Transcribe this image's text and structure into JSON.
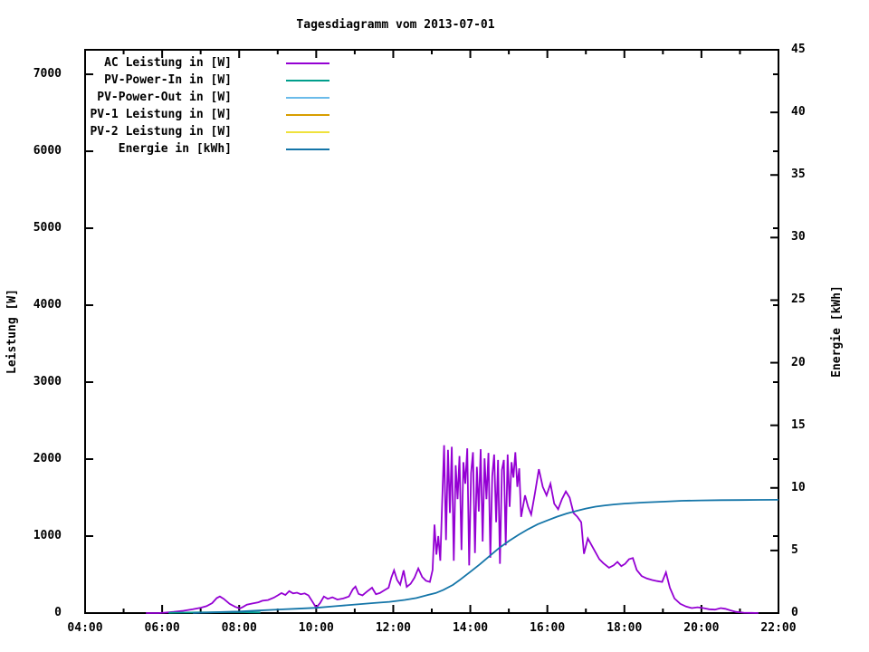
{
  "chart_data": {
    "type": "line",
    "title": "Tagesdiagramm vom 2013-07-01",
    "grid": false,
    "legend_position": "top-left-inside",
    "x_axis": {
      "range_hours": [
        4,
        22
      ],
      "major_tick_hours": 2,
      "minor_tick_hours": 1,
      "tick_labels": [
        {
          "h": 4,
          "label": "04:00"
        },
        {
          "h": 6,
          "label": "06:00"
        },
        {
          "h": 8,
          "label": "08:00"
        },
        {
          "h": 10,
          "label": "10:00"
        },
        {
          "h": 12,
          "label": "12:00"
        },
        {
          "h": 14,
          "label": "14:00"
        },
        {
          "h": 16,
          "label": "16:00"
        },
        {
          "h": 18,
          "label": "18:00"
        },
        {
          "h": 20,
          "label": "20:00"
        },
        {
          "h": 22,
          "label": "22:00"
        }
      ]
    },
    "y_left": {
      "label": "Leistung [W]",
      "range": [
        0,
        7318
      ],
      "ticks": [
        0,
        1000,
        2000,
        3000,
        4000,
        5000,
        6000,
        7000
      ]
    },
    "y_right": {
      "label": "Energie [kWh]",
      "range": [
        0,
        45
      ],
      "ticks": [
        0,
        5,
        10,
        15,
        20,
        25,
        30,
        35,
        40,
        45
      ]
    },
    "series": [
      {
        "name": "AC Leistung in [W]",
        "color": "#9400D3",
        "axis": "left",
        "points": [
          [
            5.58,
            0
          ],
          [
            5.9,
            0
          ],
          [
            6.05,
            5
          ],
          [
            6.3,
            15
          ],
          [
            6.55,
            30
          ],
          [
            6.8,
            50
          ],
          [
            7.0,
            70
          ],
          [
            7.15,
            90
          ],
          [
            7.3,
            130
          ],
          [
            7.42,
            195
          ],
          [
            7.5,
            215
          ],
          [
            7.6,
            185
          ],
          [
            7.75,
            120
          ],
          [
            7.9,
            80
          ],
          [
            8.02,
            60
          ],
          [
            8.1,
            80
          ],
          [
            8.2,
            110
          ],
          [
            8.35,
            125
          ],
          [
            8.5,
            140
          ],
          [
            8.6,
            160
          ],
          [
            8.75,
            170
          ],
          [
            8.9,
            200
          ],
          [
            9.0,
            230
          ],
          [
            9.1,
            260
          ],
          [
            9.2,
            235
          ],
          [
            9.3,
            285
          ],
          [
            9.4,
            255
          ],
          [
            9.5,
            265
          ],
          [
            9.6,
            245
          ],
          [
            9.7,
            255
          ],
          [
            9.8,
            230
          ],
          [
            9.9,
            150
          ],
          [
            10.0,
            70
          ],
          [
            10.1,
            130
          ],
          [
            10.2,
            215
          ],
          [
            10.3,
            185
          ],
          [
            10.42,
            205
          ],
          [
            10.55,
            175
          ],
          [
            10.7,
            190
          ],
          [
            10.85,
            215
          ],
          [
            10.95,
            310
          ],
          [
            11.02,
            345
          ],
          [
            11.1,
            250
          ],
          [
            11.2,
            230
          ],
          [
            11.32,
            280
          ],
          [
            11.45,
            330
          ],
          [
            11.55,
            245
          ],
          [
            11.65,
            260
          ],
          [
            11.78,
            300
          ],
          [
            11.88,
            330
          ],
          [
            11.95,
            460
          ],
          [
            12.02,
            555
          ],
          [
            12.1,
            430
          ],
          [
            12.18,
            370
          ],
          [
            12.27,
            555
          ],
          [
            12.35,
            340
          ],
          [
            12.45,
            380
          ],
          [
            12.55,
            460
          ],
          [
            12.65,
            580
          ],
          [
            12.75,
            470
          ],
          [
            12.85,
            420
          ],
          [
            12.95,
            405
          ],
          [
            13.02,
            560
          ],
          [
            13.07,
            1150
          ],
          [
            13.12,
            760
          ],
          [
            13.17,
            1000
          ],
          [
            13.22,
            680
          ],
          [
            13.27,
            1450
          ],
          [
            13.32,
            2180
          ],
          [
            13.37,
            950
          ],
          [
            13.42,
            2120
          ],
          [
            13.47,
            1300
          ],
          [
            13.52,
            2160
          ],
          [
            13.57,
            680
          ],
          [
            13.62,
            1920
          ],
          [
            13.67,
            1480
          ],
          [
            13.72,
            2040
          ],
          [
            13.77,
            820
          ],
          [
            13.82,
            1960
          ],
          [
            13.87,
            1680
          ],
          [
            13.92,
            2140
          ],
          [
            13.97,
            620
          ],
          [
            14.02,
            1820
          ],
          [
            14.07,
            2090
          ],
          [
            14.12,
            780
          ],
          [
            14.17,
            1900
          ],
          [
            14.22,
            1320
          ],
          [
            14.27,
            2130
          ],
          [
            14.32,
            930
          ],
          [
            14.37,
            2010
          ],
          [
            14.42,
            1480
          ],
          [
            14.47,
            2080
          ],
          [
            14.52,
            720
          ],
          [
            14.57,
            1780
          ],
          [
            14.62,
            2060
          ],
          [
            14.67,
            1180
          ],
          [
            14.72,
            1990
          ],
          [
            14.77,
            640
          ],
          [
            14.82,
            1860
          ],
          [
            14.87,
            1990
          ],
          [
            14.92,
            880
          ],
          [
            14.97,
            2060
          ],
          [
            15.02,
            1380
          ],
          [
            15.07,
            1960
          ],
          [
            15.12,
            1760
          ],
          [
            15.17,
            2090
          ],
          [
            15.22,
            1640
          ],
          [
            15.27,
            1880
          ],
          [
            15.32,
            1250
          ],
          [
            15.42,
            1530
          ],
          [
            15.5,
            1380
          ],
          [
            15.58,
            1280
          ],
          [
            15.68,
            1560
          ],
          [
            15.78,
            1870
          ],
          [
            15.88,
            1640
          ],
          [
            15.98,
            1530
          ],
          [
            16.08,
            1680
          ],
          [
            16.18,
            1420
          ],
          [
            16.28,
            1350
          ],
          [
            16.38,
            1480
          ],
          [
            16.48,
            1580
          ],
          [
            16.58,
            1500
          ],
          [
            16.68,
            1300
          ],
          [
            16.78,
            1250
          ],
          [
            16.88,
            1180
          ],
          [
            16.95,
            770
          ],
          [
            17.05,
            970
          ],
          [
            17.15,
            880
          ],
          [
            17.25,
            790
          ],
          [
            17.35,
            700
          ],
          [
            17.45,
            650
          ],
          [
            17.6,
            590
          ],
          [
            17.72,
            620
          ],
          [
            17.82,
            665
          ],
          [
            17.92,
            610
          ],
          [
            18.02,
            640
          ],
          [
            18.12,
            700
          ],
          [
            18.22,
            715
          ],
          [
            18.32,
            560
          ],
          [
            18.45,
            480
          ],
          [
            18.58,
            450
          ],
          [
            18.72,
            430
          ],
          [
            18.85,
            415
          ],
          [
            18.98,
            405
          ],
          [
            19.08,
            530
          ],
          [
            19.18,
            330
          ],
          [
            19.3,
            190
          ],
          [
            19.45,
            120
          ],
          [
            19.6,
            85
          ],
          [
            19.75,
            65
          ],
          [
            19.9,
            75
          ],
          [
            20.05,
            65
          ],
          [
            20.2,
            50
          ],
          [
            20.35,
            45
          ],
          [
            20.5,
            65
          ],
          [
            20.62,
            55
          ],
          [
            20.75,
            35
          ],
          [
            20.9,
            15
          ],
          [
            21.1,
            5
          ],
          [
            21.3,
            2
          ],
          [
            21.48,
            0
          ]
        ]
      },
      {
        "name": "PV-Power-In in [W]",
        "color": "#009E8C",
        "axis": "left",
        "points": [
          [
            6.17,
            3
          ],
          [
            6.5,
            6
          ],
          [
            6.9,
            8
          ],
          [
            7.3,
            10
          ],
          [
            7.7,
            12
          ],
          [
            8.0,
            14
          ],
          [
            8.3,
            10
          ],
          [
            8.55,
            8
          ]
        ]
      },
      {
        "name": "PV-Power-Out in [W]",
        "color": "#6BBBEA",
        "axis": "left",
        "points": []
      },
      {
        "name": "PV-1 Leistung in [W]",
        "color": "#D89E00",
        "axis": "left",
        "points": []
      },
      {
        "name": "PV-2 Leistung in [W]",
        "color": "#EFE23C",
        "axis": "left",
        "points": []
      },
      {
        "name": "Energie in [kWh]",
        "color": "#1475A8",
        "axis": "right",
        "points": [
          [
            6.8,
            0.0
          ],
          [
            7.0,
            0.03
          ],
          [
            7.5,
            0.08
          ],
          [
            8.0,
            0.12
          ],
          [
            8.5,
            0.2
          ],
          [
            9.0,
            0.28
          ],
          [
            9.5,
            0.35
          ],
          [
            10.0,
            0.42
          ],
          [
            10.5,
            0.55
          ],
          [
            11.0,
            0.68
          ],
          [
            11.5,
            0.8
          ],
          [
            11.9,
            0.9
          ],
          [
            12.3,
            1.05
          ],
          [
            12.6,
            1.2
          ],
          [
            12.9,
            1.45
          ],
          [
            13.1,
            1.6
          ],
          [
            13.3,
            1.85
          ],
          [
            13.55,
            2.25
          ],
          [
            13.75,
            2.7
          ],
          [
            14.0,
            3.3
          ],
          [
            14.25,
            3.9
          ],
          [
            14.5,
            4.55
          ],
          [
            14.75,
            5.2
          ],
          [
            15.0,
            5.75
          ],
          [
            15.25,
            6.25
          ],
          [
            15.5,
            6.7
          ],
          [
            15.75,
            7.1
          ],
          [
            16.0,
            7.4
          ],
          [
            16.25,
            7.7
          ],
          [
            16.5,
            7.95
          ],
          [
            16.75,
            8.15
          ],
          [
            17.0,
            8.35
          ],
          [
            17.25,
            8.5
          ],
          [
            17.5,
            8.6
          ],
          [
            17.75,
            8.68
          ],
          [
            18.0,
            8.75
          ],
          [
            18.5,
            8.83
          ],
          [
            19.0,
            8.9
          ],
          [
            19.5,
            8.97
          ],
          [
            20.0,
            9.0
          ],
          [
            20.5,
            9.02
          ],
          [
            21.0,
            9.03
          ],
          [
            21.5,
            9.04
          ],
          [
            22.0,
            9.05
          ]
        ]
      }
    ]
  }
}
